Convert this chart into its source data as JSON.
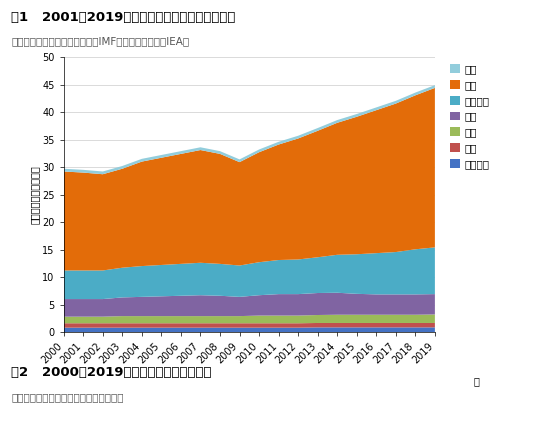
{
  "title1": "图1   2001－2019年世界经济增长与石油需求增长",
  "source1": "资料来源：国际货币基金组织（IMF），国际能源署（IEA）",
  "ylabel": "消费量（亿吨油当量）",
  "xlabel_suffix": "年",
  "title2": "图2   2000－2019年不同行业用油需求变化",
  "source2": "资料来源：中国石油集团经济技术研究院",
  "years": [
    2000,
    2001,
    2002,
    2003,
    2004,
    2005,
    2006,
    2007,
    2008,
    2009,
    2010,
    2011,
    2012,
    2013,
    2014,
    2015,
    2016,
    2017,
    2018,
    2019
  ],
  "series": {
    "农林渔业": [
      0.8,
      0.8,
      0.8,
      0.8,
      0.8,
      0.8,
      0.8,
      0.8,
      0.8,
      0.8,
      0.8,
      0.8,
      0.8,
      0.85,
      0.85,
      0.85,
      0.85,
      0.85,
      0.85,
      0.85
    ],
    "商业": [
      0.8,
      0.8,
      0.8,
      0.8,
      0.8,
      0.8,
      0.8,
      0.8,
      0.8,
      0.8,
      0.8,
      0.8,
      0.8,
      0.8,
      0.8,
      0.8,
      0.8,
      0.8,
      0.8,
      0.8
    ],
    "居民": [
      1.2,
      1.2,
      1.2,
      1.3,
      1.3,
      1.3,
      1.3,
      1.3,
      1.3,
      1.3,
      1.4,
      1.4,
      1.4,
      1.45,
      1.5,
      1.5,
      1.5,
      1.5,
      1.5,
      1.55
    ],
    "工业": [
      3.2,
      3.2,
      3.2,
      3.4,
      3.5,
      3.6,
      3.7,
      3.8,
      3.7,
      3.5,
      3.7,
      3.9,
      3.9,
      4.0,
      4.0,
      3.8,
      3.7,
      3.7,
      3.7,
      3.7
    ],
    "化工原料": [
      5.2,
      5.2,
      5.2,
      5.4,
      5.6,
      5.7,
      5.8,
      5.9,
      5.8,
      5.7,
      6.0,
      6.2,
      6.3,
      6.5,
      6.9,
      7.2,
      7.5,
      7.7,
      8.2,
      8.5
    ],
    "交通": [
      18.0,
      17.8,
      17.5,
      18.0,
      19.0,
      19.5,
      20.0,
      20.5,
      20.0,
      18.8,
      20.0,
      21.0,
      22.0,
      23.0,
      24.0,
      25.0,
      26.0,
      27.0,
      28.0,
      29.0
    ],
    "其他": [
      0.5,
      0.5,
      0.5,
      0.5,
      0.5,
      0.5,
      0.5,
      0.5,
      0.5,
      0.5,
      0.5,
      0.5,
      0.5,
      0.5,
      0.5,
      0.5,
      0.5,
      0.5,
      0.5,
      0.5
    ]
  },
  "colors": {
    "农林渔业": "#4472C4",
    "商业": "#C0504D",
    "居民": "#9BBB59",
    "工业": "#8064A2",
    "化工原料": "#4BACC6",
    "交通": "#E36C09",
    "其他": "#92CDDC"
  },
  "legend_order": [
    "其他",
    "交通",
    "化工原料",
    "工业",
    "居民",
    "商业",
    "农林渔业"
  ],
  "ylim": [
    0,
    50
  ],
  "yticks": [
    0,
    5,
    10,
    15,
    20,
    25,
    30,
    35,
    40,
    45,
    50
  ],
  "bg_color": "#FFFFFF",
  "title_fontsize": 9.5,
  "source_fontsize": 7.5,
  "axis_fontsize": 7,
  "label_fontsize": 7.5
}
